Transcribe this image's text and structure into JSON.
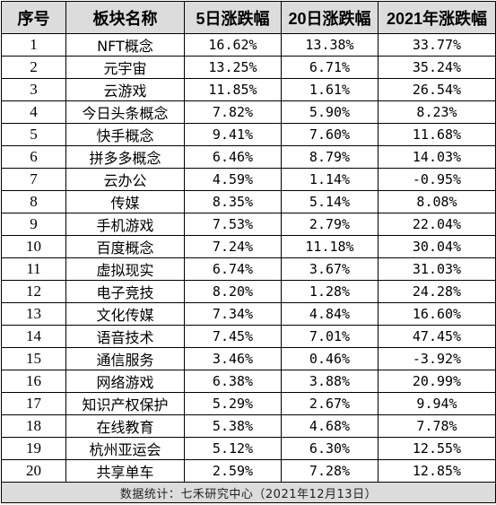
{
  "table": {
    "headers": [
      "序号",
      "板块名称",
      "5日涨跌幅",
      "20日涨跌幅",
      "2021年涨跌幅"
    ],
    "rows": [
      {
        "seq": "1",
        "name": "NFT概念",
        "d5": "16.62%",
        "d20": "13.38%",
        "y2021": "33.77%"
      },
      {
        "seq": "2",
        "name": "元宇宙",
        "d5": "13.25%",
        "d20": "6.71%",
        "y2021": "35.24%"
      },
      {
        "seq": "3",
        "name": "云游戏",
        "d5": "11.85%",
        "d20": "1.61%",
        "y2021": "26.54%"
      },
      {
        "seq": "4",
        "name": "今日头条概念",
        "d5": "7.82%",
        "d20": "5.90%",
        "y2021": "8.23%"
      },
      {
        "seq": "5",
        "name": "快手概念",
        "d5": "9.41%",
        "d20": "7.60%",
        "y2021": "11.68%"
      },
      {
        "seq": "6",
        "name": "拼多多概念",
        "d5": "6.46%",
        "d20": "8.79%",
        "y2021": "14.03%"
      },
      {
        "seq": "7",
        "name": "云办公",
        "d5": "4.59%",
        "d20": "1.14%",
        "y2021": "-0.95%"
      },
      {
        "seq": "8",
        "name": "传媒",
        "d5": "8.35%",
        "d20": "5.14%",
        "y2021": "8.08%"
      },
      {
        "seq": "9",
        "name": "手机游戏",
        "d5": "7.53%",
        "d20": "2.79%",
        "y2021": "22.04%"
      },
      {
        "seq": "10",
        "name": "百度概念",
        "d5": "7.24%",
        "d20": "11.18%",
        "y2021": "30.04%"
      },
      {
        "seq": "11",
        "name": "虚拟现实",
        "d5": "6.74%",
        "d20": "3.67%",
        "y2021": "31.03%"
      },
      {
        "seq": "12",
        "name": "电子竞技",
        "d5": "8.20%",
        "d20": "1.28%",
        "y2021": "24.28%"
      },
      {
        "seq": "13",
        "name": "文化传媒",
        "d5": "7.34%",
        "d20": "4.84%",
        "y2021": "16.60%"
      },
      {
        "seq": "14",
        "name": "语音技术",
        "d5": "7.45%",
        "d20": "7.01%",
        "y2021": "47.45%"
      },
      {
        "seq": "15",
        "name": "通信服务",
        "d5": "3.46%",
        "d20": "0.46%",
        "y2021": "-3.92%"
      },
      {
        "seq": "16",
        "name": "网络游戏",
        "d5": "6.38%",
        "d20": "3.88%",
        "y2021": "20.99%"
      },
      {
        "seq": "17",
        "name": "知识产权保护",
        "d5": "5.29%",
        "d20": "2.67%",
        "y2021": "9.94%"
      },
      {
        "seq": "18",
        "name": "在线教育",
        "d5": "5.38%",
        "d20": "4.68%",
        "y2021": "7.78%"
      },
      {
        "seq": "19",
        "name": "杭州亚运会",
        "d5": "5.12%",
        "d20": "6.30%",
        "y2021": "12.55%"
      },
      {
        "seq": "20",
        "name": "共享单车",
        "d5": "2.59%",
        "d20": "7.28%",
        "y2021": "12.85%"
      }
    ],
    "footer": "数据统计：七禾研究中心（2021年12月13日）"
  },
  "colors": {
    "header_bg": "#dcdcdc",
    "footer_bg": "#dcdcdc",
    "border": "#000000",
    "text": "#000000"
  }
}
